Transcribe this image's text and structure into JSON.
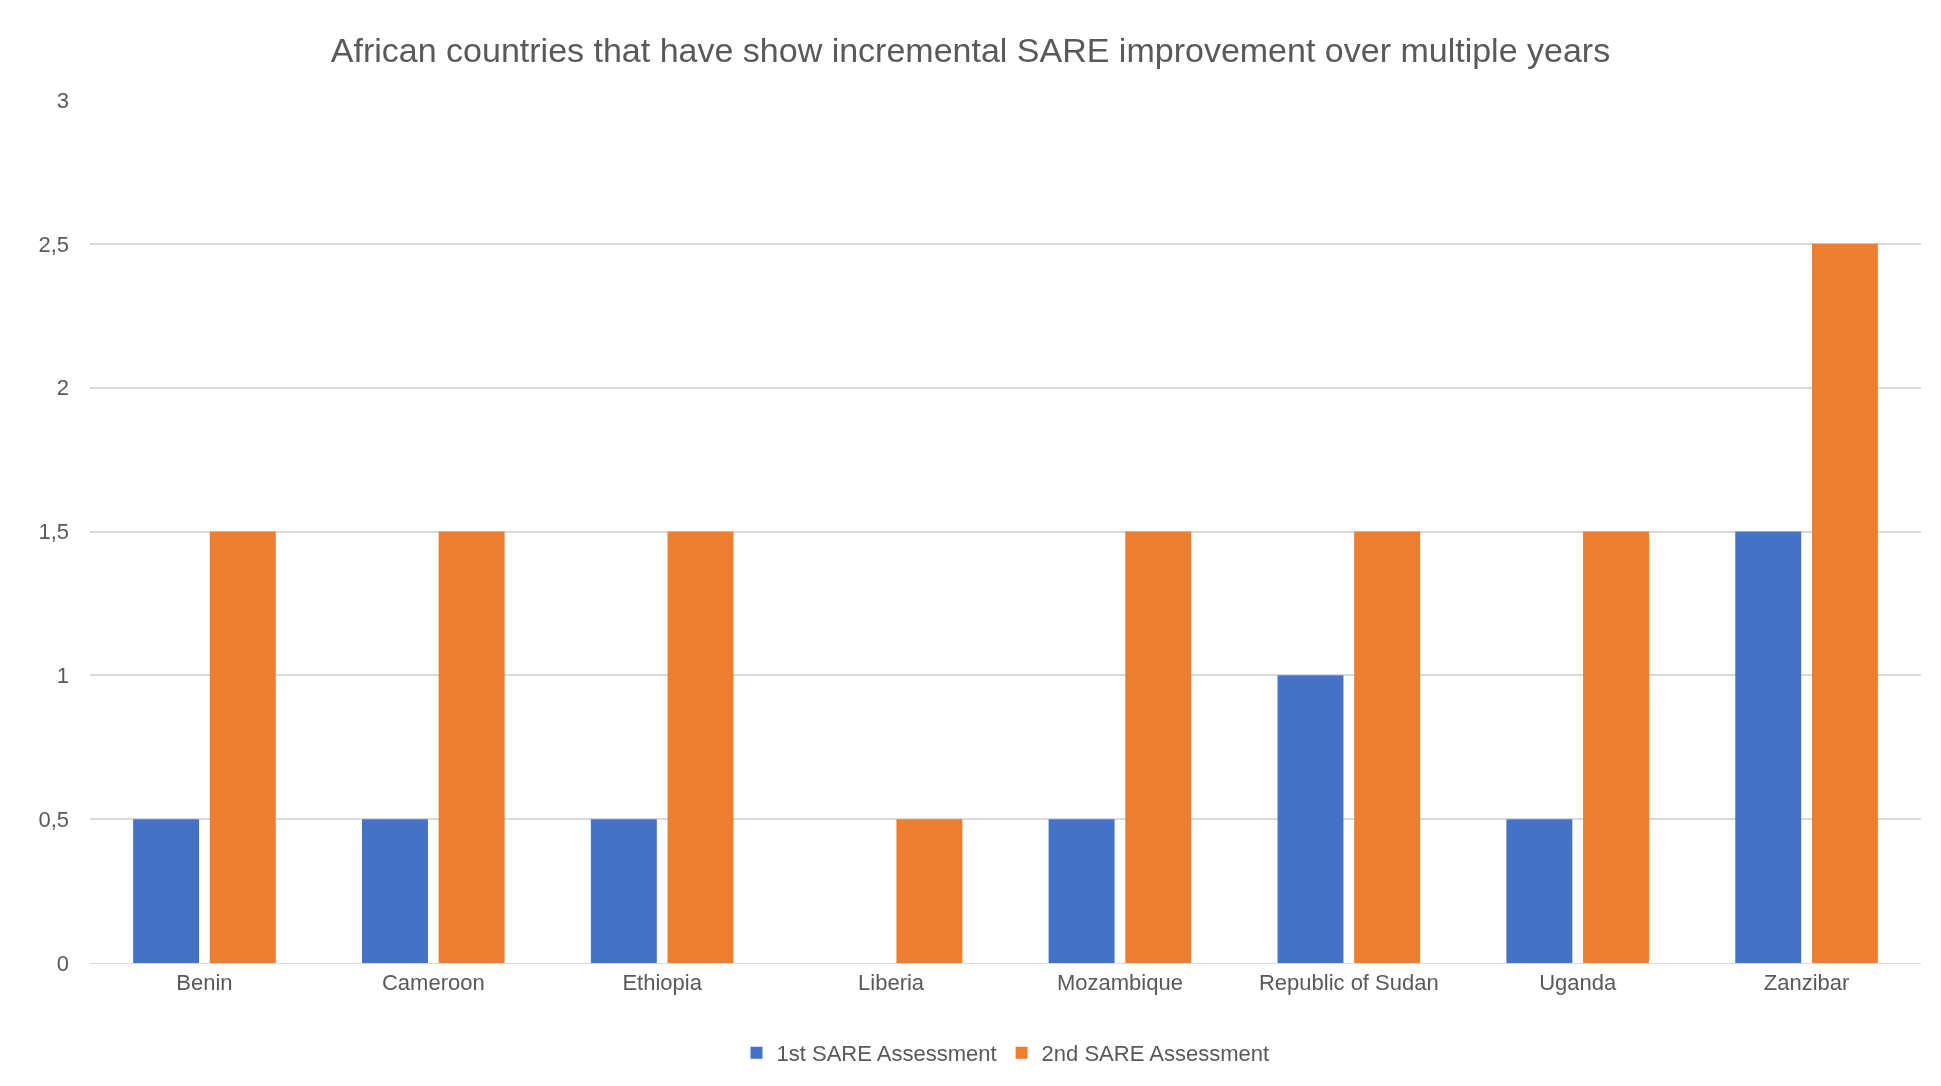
{
  "chart_data": {
    "type": "bar",
    "title": "African countries that have show incremental SARE improvement over multiple years",
    "categories": [
      "Benin",
      "Cameroon",
      "Ethiopia",
      "Liberia",
      "Mozambique",
      "Republic of Sudan",
      "Uganda",
      "Zanzibar"
    ],
    "series": [
      {
        "name": "1st SARE Assessment",
        "color": "#4472c4",
        "values": [
          0.5,
          0.5,
          0.5,
          0,
          0.5,
          1,
          0.5,
          1.5
        ]
      },
      {
        "name": "2nd SARE Assessment",
        "color": "#ed7d31",
        "values": [
          1.5,
          1.5,
          1.5,
          0.5,
          1.5,
          1.5,
          1.5,
          2.5
        ]
      }
    ],
    "ylim": [
      0,
      3
    ],
    "yticks": [
      0,
      {
        "value": 0.5,
        "label": "0,5"
      },
      1,
      {
        "value": 1.5,
        "label": "1,5"
      },
      2,
      {
        "value": 2.5,
        "label": "2,5"
      },
      3
    ],
    "grid": "y",
    "legend": "bottom"
  }
}
